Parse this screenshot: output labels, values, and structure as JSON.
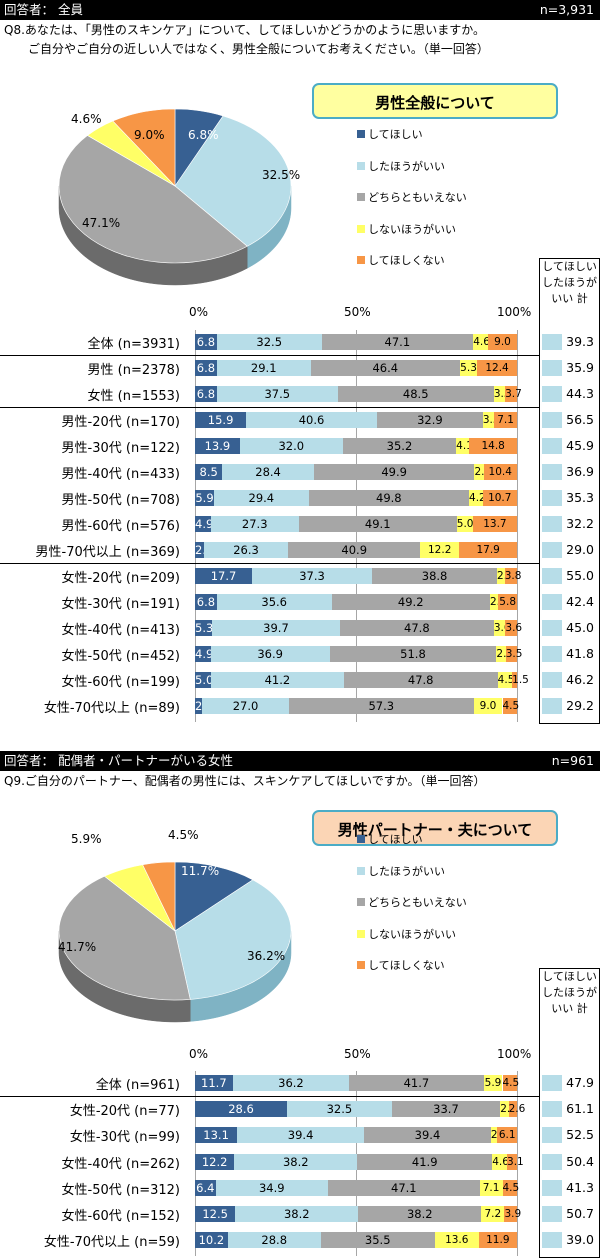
{
  "colors": {
    "してほしい": "#376092",
    "したほうがいい": "#b7dde8",
    "どちらともいえない": "#a6a6a6",
    "しないほうがいい": "#ffff66",
    "してほしくない": "#f79646"
  },
  "sections": [
    {
      "header_left": "回答者： 全員",
      "header_right": "n=3,931",
      "question": [
        "Q8.あなたは、「男性のスキンケア」について、してほしいかどうかのように思いますか。",
        "ご自分やご自分の近しい人ではなく、男性全般についてお考えください。（単一回答）"
      ],
      "badge": "男性全般について",
      "sum_header": [
        "してほしい",
        "したほうが",
        "いい 計"
      ],
      "axis_labels": [
        "0%",
        "50%",
        "100%"
      ],
      "legend": [
        "してほしい",
        "したほうがいい",
        "どちらともいえない",
        "しないほうがいい",
        "してほしくない"
      ],
      "pie": {
        "values": [
          6.8,
          32.5,
          47.1,
          4.6,
          9.0
        ],
        "labels": [
          "6.8%",
          "32.5%",
          "47.1%",
          "4.6%",
          "9.0%"
        ]
      },
      "rows": [
        {
          "label": "全体 (n=3931)",
          "values": [
            6.8,
            32.5,
            47.1,
            4.6,
            9.0
          ],
          "sum": "39.3",
          "group_end": true
        },
        {
          "label": "男性 (n=2378)",
          "values": [
            6.8,
            29.1,
            46.4,
            5.3,
            12.4
          ],
          "sum": "35.9"
        },
        {
          "label": "女性 (n=1553)",
          "values": [
            6.8,
            37.5,
            48.5,
            3.5,
            3.7
          ],
          "sum": "44.3",
          "group_end": true
        },
        {
          "label": "男性-20代 (n=170)",
          "values": [
            15.9,
            40.6,
            32.9,
            3.5,
            7.1
          ],
          "sum": "56.5"
        },
        {
          "label": "男性-30代 (n=122)",
          "values": [
            13.9,
            32.0,
            35.2,
            4.1,
            14.8
          ],
          "sum": "45.9"
        },
        {
          "label": "男性-40代 (n=433)",
          "values": [
            8.5,
            28.4,
            49.9,
            2.8,
            10.4
          ],
          "sum": "36.9"
        },
        {
          "label": "男性-50代 (n=708)",
          "values": [
            5.9,
            29.4,
            49.8,
            4.2,
            10.7
          ],
          "sum": "35.3"
        },
        {
          "label": "男性-60代 (n=576)",
          "values": [
            4.9,
            27.3,
            49.1,
            5.0,
            13.7
          ],
          "sum": "32.2"
        },
        {
          "label": "男性-70代以上 (n=369)",
          "values": [
            2.7,
            26.3,
            40.9,
            12.2,
            17.9
          ],
          "sum": "29.0",
          "group_end": true
        },
        {
          "label": "女性-20代 (n=209)",
          "values": [
            17.7,
            37.3,
            38.8,
            2.4,
            3.8
          ],
          "sum": "55.0"
        },
        {
          "label": "女性-30代 (n=191)",
          "values": [
            6.8,
            35.6,
            49.2,
            2.6,
            5.8
          ],
          "sum": "42.4"
        },
        {
          "label": "女性-40代 (n=413)",
          "values": [
            5.3,
            39.7,
            47.8,
            3.6,
            3.6
          ],
          "sum": "45.0"
        },
        {
          "label": "女性-50代 (n=452)",
          "values": [
            4.9,
            36.9,
            51.8,
            2.9,
            3.5
          ],
          "sum": "41.8"
        },
        {
          "label": "女性-60代 (n=199)",
          "values": [
            5.0,
            41.2,
            47.8,
            4.5,
            1.5
          ],
          "sum": "46.2"
        },
        {
          "label": "女性-70代以上 (n=89)",
          "values": [
            2.2,
            27.0,
            57.3,
            9.0,
            4.5
          ],
          "sum": "29.2"
        }
      ]
    },
    {
      "header_left": "回答者： 配偶者・パートナーがいる女性",
      "header_right": "n=961",
      "question": [
        "Q9.ご自分のパートナー、配偶者の男性には、スキンケアしてほしいですか。（単一回答）"
      ],
      "badge": "男性パートナー・夫について",
      "sum_header": [
        "してほしい",
        "したほうが",
        "いい 計"
      ],
      "axis_labels": [
        "0%",
        "50%",
        "100%"
      ],
      "legend": [
        "してほしい",
        "したほうがいい",
        "どちらともいえない",
        "しないほうがいい",
        "してほしくない"
      ],
      "pie": {
        "values": [
          11.7,
          36.2,
          41.7,
          5.9,
          4.5
        ],
        "labels": [
          "11.7%",
          "36.2%",
          "41.7%",
          "5.9%",
          "4.5%"
        ]
      },
      "rows": [
        {
          "label": "全体 (n=961)",
          "values": [
            11.7,
            36.2,
            41.7,
            5.9,
            4.5
          ],
          "sum": "47.9",
          "group_end": true
        },
        {
          "label": "女性-20代 (n=77)",
          "values": [
            28.6,
            32.5,
            33.7,
            2.6,
            2.6
          ],
          "sum": "61.1"
        },
        {
          "label": "女性-30代 (n=99)",
          "values": [
            13.1,
            39.4,
            39.4,
            2.0,
            6.1
          ],
          "sum": "52.5"
        },
        {
          "label": "女性-40代 (n=262)",
          "values": [
            12.2,
            38.2,
            41.9,
            4.6,
            3.1
          ],
          "sum": "50.4"
        },
        {
          "label": "女性-50代 (n=312)",
          "values": [
            6.4,
            34.9,
            47.1,
            7.1,
            4.5
          ],
          "sum": "41.3"
        },
        {
          "label": "女性-60代 (n=152)",
          "values": [
            12.5,
            38.2,
            38.2,
            7.2,
            3.9
          ],
          "sum": "50.7"
        },
        {
          "label": "女性-70代以上 (n=59)",
          "values": [
            10.2,
            28.8,
            35.5,
            13.6,
            11.9
          ],
          "sum": "39.0"
        }
      ]
    }
  ],
  "chart_data": [
    {
      "type": "pie",
      "categories": [
        "してほしい",
        "したほうがいい",
        "どちらともいえない",
        "しないほうがいい",
        "してほしくない"
      ],
      "values": [
        6.8,
        32.5,
        47.1,
        4.6,
        9.0
      ],
      "title": "男性全般について"
    },
    {
      "type": "bar",
      "stacked": true,
      "orientation": "horizontal",
      "title": "男性全般について",
      "categories": [
        "全体 (n=3931)",
        "男性 (n=2378)",
        "女性 (n=1553)",
        "男性-20代 (n=170)",
        "男性-30代 (n=122)",
        "男性-40代 (n=433)",
        "男性-50代 (n=708)",
        "男性-60代 (n=576)",
        "男性-70代以上 (n=369)",
        "女性-20代 (n=209)",
        "女性-30代 (n=191)",
        "女性-40代 (n=413)",
        "女性-50代 (n=452)",
        "女性-60代 (n=199)",
        "女性-70代以上 (n=89)"
      ],
      "series": [
        {
          "name": "してほしい",
          "values": [
            6.8,
            6.8,
            6.8,
            15.9,
            13.9,
            8.5,
            5.9,
            4.9,
            2.7,
            17.7,
            6.8,
            5.3,
            4.9,
            5.0,
            2.2
          ]
        },
        {
          "name": "したほうがいい",
          "values": [
            32.5,
            29.1,
            37.5,
            40.6,
            32.0,
            28.4,
            29.4,
            27.3,
            26.3,
            37.3,
            35.6,
            39.7,
            36.9,
            41.2,
            27.0
          ]
        },
        {
          "name": "どちらともいえない",
          "values": [
            47.1,
            46.4,
            48.5,
            32.9,
            35.2,
            49.9,
            49.8,
            49.1,
            40.9,
            38.8,
            49.2,
            47.8,
            51.8,
            47.8,
            57.3
          ]
        },
        {
          "name": "しないほうがいい",
          "values": [
            4.6,
            5.3,
            3.5,
            3.5,
            4.1,
            2.8,
            4.2,
            5.0,
            12.2,
            2.4,
            2.6,
            3.6,
            2.9,
            4.5,
            9.0
          ]
        },
        {
          "name": "してほしくない",
          "values": [
            9.0,
            12.4,
            3.7,
            7.1,
            14.8,
            10.4,
            10.7,
            13.7,
            17.9,
            3.8,
            5.8,
            3.6,
            3.5,
            1.5,
            4.5
          ]
        }
      ],
      "sum_label": "してほしい したほうがいい 計",
      "sum": [
        39.3,
        35.9,
        44.3,
        56.5,
        45.9,
        36.9,
        35.3,
        32.2,
        29.0,
        55.0,
        42.4,
        45.0,
        41.8,
        46.2,
        29.2
      ],
      "xlim": [
        0,
        100
      ]
    },
    {
      "type": "pie",
      "categories": [
        "してほしい",
        "したほうがいい",
        "どちらともいえない",
        "しないほうがいい",
        "してほしくない"
      ],
      "values": [
        11.7,
        36.2,
        41.7,
        5.9,
        4.5
      ],
      "title": "男性パートナー・夫について"
    },
    {
      "type": "bar",
      "stacked": true,
      "orientation": "horizontal",
      "title": "男性パートナー・夫について",
      "categories": [
        "全体 (n=961)",
        "女性-20代 (n=77)",
        "女性-30代 (n=99)",
        "女性-40代 (n=262)",
        "女性-50代 (n=312)",
        "女性-60代 (n=152)",
        "女性-70代以上 (n=59)"
      ],
      "series": [
        {
          "name": "してほしい",
          "values": [
            11.7,
            28.6,
            13.1,
            12.2,
            6.4,
            12.5,
            10.2
          ]
        },
        {
          "name": "したほうがいい",
          "values": [
            36.2,
            32.5,
            39.4,
            38.2,
            34.9,
            38.2,
            28.8
          ]
        },
        {
          "name": "どちらともいえない",
          "values": [
            41.7,
            33.7,
            39.4,
            41.9,
            47.1,
            38.2,
            35.5
          ]
        },
        {
          "name": "しないほうがいい",
          "values": [
            5.9,
            2.6,
            2.0,
            4.6,
            7.1,
            7.2,
            13.6
          ]
        },
        {
          "name": "してほしくない",
          "values": [
            4.5,
            2.6,
            6.1,
            3.1,
            4.5,
            3.9,
            11.9
          ]
        }
      ],
      "sum_label": "してほしい したほうがいい 計",
      "sum": [
        47.9,
        61.1,
        52.5,
        50.4,
        41.3,
        50.7,
        39.0
      ],
      "xlim": [
        0,
        100
      ]
    }
  ]
}
